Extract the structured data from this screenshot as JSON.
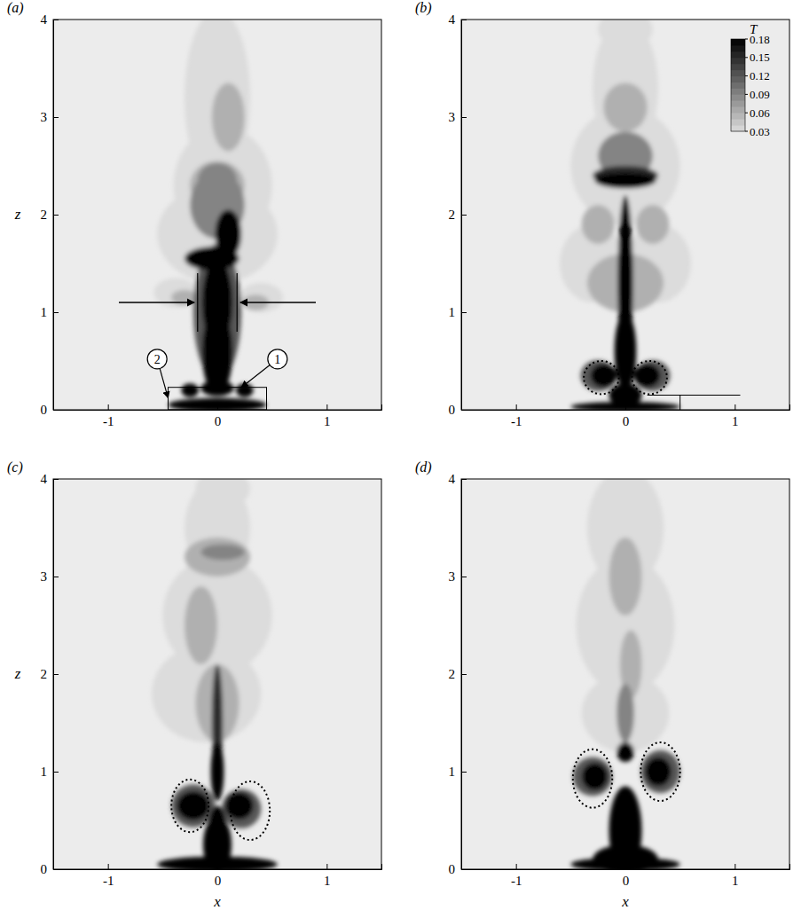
{
  "chart_data": [
    {
      "type": "heatmap",
      "title": "(a)",
      "y_label": "z",
      "xlim": [
        -1.5,
        1.5
      ],
      "ylim": [
        0,
        4
      ],
      "xticks": [
        -1,
        0,
        1
      ],
      "yticks": [
        0,
        1,
        2,
        3,
        4
      ],
      "annotations": [
        {
          "text": "1",
          "x": 0.55,
          "z": 0.52
        },
        {
          "text": "2",
          "x": -0.55,
          "z": 0.52
        }
      ],
      "blobs": [
        {
          "x": 0,
          "z": 3.2,
          "rx": 0.3,
          "rz": 0.9,
          "T": 0.03
        },
        {
          "x": 0.05,
          "z": 2.3,
          "rx": 0.45,
          "rz": 0.6,
          "T": 0.03
        },
        {
          "x": 0,
          "z": 1.8,
          "rx": 0.55,
          "rz": 0.5,
          "T": 0.03
        },
        {
          "x": -0.38,
          "z": 1.2,
          "rx": 0.2,
          "rz": 0.15,
          "T": 0.03
        },
        {
          "x": 0.4,
          "z": 1.15,
          "rx": 0.2,
          "rz": 0.15,
          "T": 0.03
        },
        {
          "x": 0,
          "z": 2.3,
          "rx": 0.25,
          "rz": 0.25,
          "T": 0.06
        },
        {
          "x": 0.1,
          "z": 3.0,
          "rx": 0.15,
          "rz": 0.35,
          "T": 0.06
        },
        {
          "x": -0.3,
          "z": 1.15,
          "rx": 0.12,
          "rz": 0.08,
          "T": 0.06
        },
        {
          "x": 0.35,
          "z": 1.1,
          "rx": 0.12,
          "rz": 0.08,
          "T": 0.06
        },
        {
          "x": 0,
          "z": 2.1,
          "rx": 0.25,
          "rz": 0.35,
          "T": 0.09
        },
        {
          "x": 0,
          "z": 2.35,
          "rx": 0.18,
          "rz": 0.18,
          "T": 0.09
        },
        {
          "x": 0,
          "z": 1.0,
          "rx": 0.22,
          "rz": 0.7,
          "T": 0.12
        },
        {
          "x": 0,
          "z": 0.6,
          "rx": 0.14,
          "rz": 0.45,
          "T": 0.18
        },
        {
          "x": 0,
          "z": 1.1,
          "rx": 0.14,
          "rz": 0.45,
          "T": 0.18
        },
        {
          "x": -0.05,
          "z": 1.55,
          "rx": 0.25,
          "rz": 0.12,
          "T": 0.18
        },
        {
          "x": 0.1,
          "z": 1.8,
          "rx": 0.12,
          "rz": 0.25,
          "T": 0.18
        },
        {
          "x": 0,
          "z": 0.05,
          "rx": 0.45,
          "rz": 0.07,
          "T": 0.18
        },
        {
          "x": -0.25,
          "z": 0.2,
          "rx": 0.08,
          "rz": 0.07,
          "T": 0.18
        },
        {
          "x": 0.25,
          "z": 0.2,
          "rx": 0.08,
          "rz": 0.07,
          "T": 0.18
        },
        {
          "x": 0,
          "z": 0.22,
          "rx": 0.15,
          "rz": 0.08,
          "T": 0.18
        }
      ]
    },
    {
      "type": "heatmap",
      "title": "(b)",
      "xlim": [
        -1.5,
        1.5
      ],
      "ylim": [
        0,
        4
      ],
      "xticks": [
        -1,
        0,
        1
      ],
      "yticks": [
        0,
        1,
        2,
        3,
        4
      ],
      "colorbar": {
        "title": "T",
        "range": [
          0.03,
          0.18
        ],
        "ticks": [
          0.03,
          0.06,
          0.09,
          0.12,
          0.15,
          0.18
        ]
      },
      "blobs": [
        {
          "x": 0,
          "z": 3.3,
          "rx": 0.3,
          "rz": 0.7,
          "T": 0.03
        },
        {
          "x": 0,
          "z": 2.5,
          "rx": 0.5,
          "rz": 0.6,
          "T": 0.03
        },
        {
          "x": -0.3,
          "z": 1.5,
          "rx": 0.3,
          "rz": 0.4,
          "T": 0.03
        },
        {
          "x": 0.3,
          "z": 1.5,
          "rx": 0.3,
          "rz": 0.4,
          "T": 0.03
        },
        {
          "x": 0,
          "z": 3.9,
          "rx": 0.25,
          "rz": 0.2,
          "T": 0.03
        },
        {
          "x": 0,
          "z": 3.1,
          "rx": 0.2,
          "rz": 0.25,
          "T": 0.06
        },
        {
          "x": -0.25,
          "z": 1.9,
          "rx": 0.15,
          "rz": 0.2,
          "T": 0.06
        },
        {
          "x": 0.25,
          "z": 1.9,
          "rx": 0.15,
          "rz": 0.2,
          "T": 0.06
        },
        {
          "x": 0,
          "z": 1.3,
          "rx": 0.35,
          "rz": 0.3,
          "T": 0.06
        },
        {
          "x": 0,
          "z": 2.6,
          "rx": 0.25,
          "rz": 0.25,
          "T": 0.09
        },
        {
          "x": -0.25,
          "z": 0.35,
          "rx": 0.16,
          "rz": 0.16,
          "T": 0.12
        },
        {
          "x": 0.25,
          "z": 0.35,
          "rx": 0.16,
          "rz": 0.16,
          "T": 0.12
        },
        {
          "x": 0,
          "z": 2.4,
          "rx": 0.3,
          "rz": 0.1,
          "T": 0.15
        },
        {
          "x": 0,
          "z": 2.35,
          "rx": 0.28,
          "rz": 0.08,
          "T": 0.18
        },
        {
          "x": 0,
          "z": 1.3,
          "rx": 0.07,
          "rz": 0.9,
          "T": 0.18
        },
        {
          "x": 0,
          "z": 0.6,
          "rx": 0.1,
          "rz": 0.4,
          "T": 0.18
        },
        {
          "x": -0.2,
          "z": 0.35,
          "rx": 0.12,
          "rz": 0.12,
          "T": 0.18
        },
        {
          "x": 0.2,
          "z": 0.35,
          "rx": 0.12,
          "rz": 0.12,
          "T": 0.18
        },
        {
          "x": 0,
          "z": 0.03,
          "rx": 0.5,
          "rz": 0.05,
          "T": 0.18
        },
        {
          "x": 0,
          "z": 0.15,
          "rx": 0.15,
          "rz": 0.12,
          "T": 0.18
        }
      ]
    },
    {
      "type": "heatmap",
      "title": "(c)",
      "x_label": "x",
      "y_label": "z",
      "xlim": [
        -1.5,
        1.5
      ],
      "ylim": [
        0,
        4
      ],
      "xticks": [
        -1,
        0,
        1
      ],
      "yticks": [
        0,
        1,
        2,
        3,
        4
      ],
      "blobs": [
        {
          "x": 0,
          "z": 3.5,
          "rx": 0.3,
          "rz": 0.5,
          "T": 0.03
        },
        {
          "x": 0,
          "z": 2.6,
          "rx": 0.5,
          "rz": 0.6,
          "T": 0.03
        },
        {
          "x": -0.1,
          "z": 1.8,
          "rx": 0.5,
          "rz": 0.5,
          "T": 0.03
        },
        {
          "x": 0.05,
          "z": 3.9,
          "rx": 0.25,
          "rz": 0.2,
          "T": 0.03
        },
        {
          "x": 0,
          "z": 3.2,
          "rx": 0.3,
          "rz": 0.2,
          "T": 0.06
        },
        {
          "x": -0.15,
          "z": 2.5,
          "rx": 0.15,
          "rz": 0.4,
          "T": 0.06
        },
        {
          "x": 0,
          "z": 1.7,
          "rx": 0.2,
          "rz": 0.4,
          "T": 0.06
        },
        {
          "x": 0.05,
          "z": 3.25,
          "rx": 0.2,
          "rz": 0.08,
          "T": 0.09
        },
        {
          "x": -0.22,
          "z": 0.65,
          "rx": 0.2,
          "rz": 0.22,
          "T": 0.12
        },
        {
          "x": 0.22,
          "z": 0.62,
          "rx": 0.18,
          "rz": 0.2,
          "T": 0.12
        },
        {
          "x": 0,
          "z": 1.5,
          "rx": 0.05,
          "rz": 0.6,
          "T": 0.15
        },
        {
          "x": 0,
          "z": 1.0,
          "rx": 0.06,
          "rz": 0.3,
          "T": 0.18
        },
        {
          "x": -0.22,
          "z": 0.65,
          "rx": 0.15,
          "rz": 0.15,
          "T": 0.18
        },
        {
          "x": 0.2,
          "z": 0.65,
          "rx": 0.13,
          "rz": 0.14,
          "T": 0.18
        },
        {
          "x": 0,
          "z": 0.25,
          "rx": 0.13,
          "rz": 0.3,
          "T": 0.18
        },
        {
          "x": 0,
          "z": 0.05,
          "rx": 0.55,
          "rz": 0.08,
          "T": 0.18
        },
        {
          "x": 0,
          "z": 0.45,
          "rx": 0.08,
          "rz": 0.2,
          "T": 0.18
        }
      ]
    },
    {
      "type": "heatmap",
      "title": "(d)",
      "x_label": "x",
      "xlim": [
        -1.5,
        1.5
      ],
      "ylim": [
        0,
        4
      ],
      "xticks": [
        -1,
        0,
        1
      ],
      "yticks": [
        0,
        1,
        2,
        3,
        4
      ],
      "blobs": [
        {
          "x": 0,
          "z": 3.5,
          "rx": 0.35,
          "rz": 0.6,
          "T": 0.03
        },
        {
          "x": 0,
          "z": 2.5,
          "rx": 0.45,
          "rz": 0.7,
          "T": 0.03
        },
        {
          "x": 0,
          "z": 1.6,
          "rx": 0.4,
          "rz": 0.4,
          "T": 0.03
        },
        {
          "x": 0,
          "z": 3.0,
          "rx": 0.15,
          "rz": 0.4,
          "T": 0.06
        },
        {
          "x": 0.05,
          "z": 2.1,
          "rx": 0.1,
          "rz": 0.35,
          "T": 0.06
        },
        {
          "x": 0,
          "z": 1.6,
          "rx": 0.08,
          "rz": 0.3,
          "T": 0.09
        },
        {
          "x": -0.3,
          "z": 0.95,
          "rx": 0.18,
          "rz": 0.2,
          "T": 0.12
        },
        {
          "x": 0.32,
          "z": 1.0,
          "rx": 0.18,
          "rz": 0.22,
          "T": 0.12
        },
        {
          "x": -0.28,
          "z": 0.95,
          "rx": 0.12,
          "rz": 0.14,
          "T": 0.18
        },
        {
          "x": 0.3,
          "z": 1.0,
          "rx": 0.12,
          "rz": 0.15,
          "T": 0.18
        },
        {
          "x": 0,
          "z": 0.4,
          "rx": 0.15,
          "rz": 0.45,
          "T": 0.18
        },
        {
          "x": 0,
          "z": 0.1,
          "rx": 0.3,
          "rz": 0.15,
          "T": 0.18
        },
        {
          "x": 0,
          "z": 0.05,
          "rx": 0.5,
          "rz": 0.07,
          "T": 0.18
        },
        {
          "x": 0,
          "z": 1.2,
          "rx": 0.08,
          "rz": 0.1,
          "T": 0.18
        }
      ]
    }
  ]
}
